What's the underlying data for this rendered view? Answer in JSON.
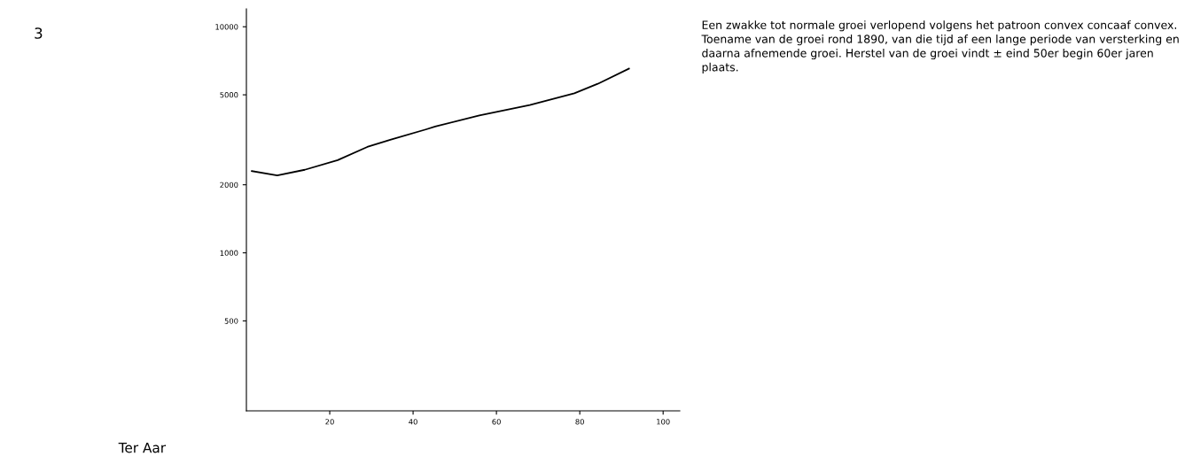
{
  "chart_data": {
    "type": "line",
    "annotations": [
      "3",
      "Ter Aar",
      "Een zwakke tot normale groei verlopend volgens het patroon convex concaaf convex. Toename van de groei rond 1890, van die tijd af een lange periode van versterking en daarna afnemende groei. Herstel van de groei vindt ± eind 50er begin 60er jaren plaats."
    ],
    "series": [
      {
        "color": "#000000",
        "x": [
          1.3,
          7.4,
          14,
          21.9,
          29,
          34.7,
          43.2,
          45.3,
          55.9,
          68,
          78.7,
          84.3,
          91.8
        ],
        "values": [
          2300,
          2200,
          2330,
          2570,
          2940,
          3170,
          3520,
          3620,
          4050,
          4510,
          5080,
          5590,
          6530
        ]
      }
    ],
    "xlim": [
      0,
      104
    ],
    "xticks": [
      20,
      40,
      60,
      80,
      100
    ],
    "ylim": [
      200,
      12000
    ],
    "yticks": [
      500,
      1000,
      2000,
      5000,
      10000
    ],
    "log": "y",
    "grid": false,
    "legend": false,
    "marker": "none",
    "line_style": "solid"
  }
}
